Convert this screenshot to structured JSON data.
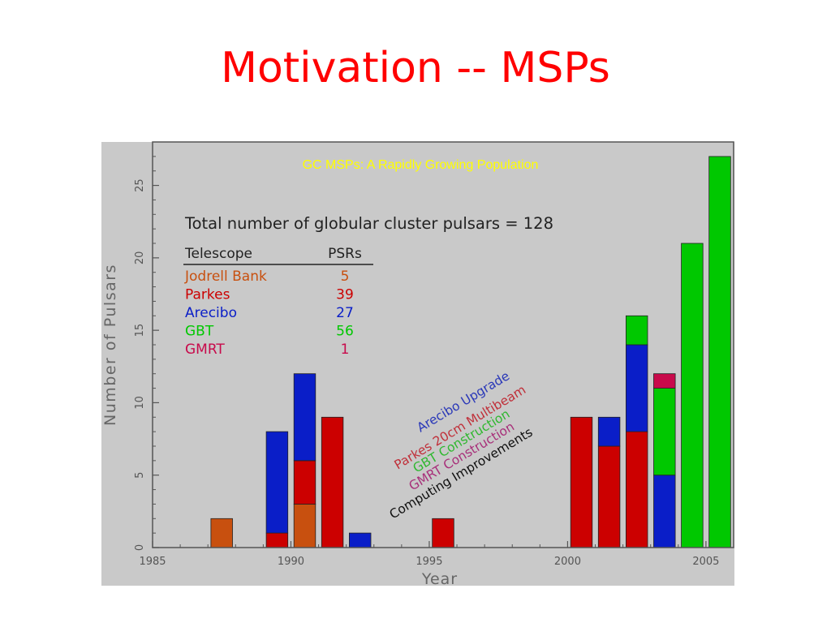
{
  "slide": {
    "title": "Motivation -- MSPs"
  },
  "chart_data": {
    "type": "bar",
    "stacked": true,
    "title": "GC MSPs: A Rapidly Growing Population",
    "xlabel": "Year",
    "ylabel": "Number of Pulsars",
    "xlim": [
      1985,
      2006
    ],
    "ylim": [
      0,
      28
    ],
    "xticks": [
      "1985",
      "1990",
      "1995",
      "2000",
      "2005"
    ],
    "yticks": [
      "0",
      "5",
      "10",
      "15",
      "20",
      "25"
    ],
    "grid": false,
    "colors": {
      "Jodrell Bank": "#c8500f",
      "Parkes": "#cc0000",
      "Arecibo": "#0a1ec8",
      "GBT": "#00c800",
      "GMRT": "#c80a4b"
    },
    "bars": [
      {
        "year": 1987.5,
        "segments": [
          {
            "series": "Jodrell Bank",
            "value": 2
          }
        ]
      },
      {
        "year": 1989.5,
        "segments": [
          {
            "series": "Parkes",
            "value": 1
          },
          {
            "series": "Arecibo",
            "value": 7
          }
        ]
      },
      {
        "year": 1990.5,
        "segments": [
          {
            "series": "Jodrell Bank",
            "value": 3
          },
          {
            "series": "Parkes",
            "value": 3
          },
          {
            "series": "Arecibo",
            "value": 6
          }
        ]
      },
      {
        "year": 1991.5,
        "segments": [
          {
            "series": "Parkes",
            "value": 9
          }
        ]
      },
      {
        "year": 1992.5,
        "segments": [
          {
            "series": "Arecibo",
            "value": 1
          }
        ]
      },
      {
        "year": 1995.5,
        "segments": [
          {
            "series": "Parkes",
            "value": 2
          }
        ]
      },
      {
        "year": 2000.5,
        "segments": [
          {
            "series": "Parkes",
            "value": 9
          }
        ]
      },
      {
        "year": 2001.5,
        "segments": [
          {
            "series": "Parkes",
            "value": 7
          },
          {
            "series": "Arecibo",
            "value": 2
          }
        ]
      },
      {
        "year": 2002.5,
        "segments": [
          {
            "series": "Parkes",
            "value": 8
          },
          {
            "series": "Arecibo",
            "value": 6
          },
          {
            "series": "GBT",
            "value": 2
          }
        ]
      },
      {
        "year": 2003.5,
        "segments": [
          {
            "series": "Arecibo",
            "value": 5
          },
          {
            "series": "GBT",
            "value": 6
          },
          {
            "series": "GMRT",
            "value": 1
          }
        ]
      },
      {
        "year": 2004.5,
        "segments": [
          {
            "series": "GBT",
            "value": 21
          }
        ]
      },
      {
        "year": 2005.5,
        "segments": [
          {
            "series": "GBT",
            "value": 27
          }
        ]
      }
    ],
    "annotation": {
      "total_text": "Total number of globular cluster pulsars = 128",
      "table_header": {
        "telescope": "Telescope",
        "psrs": "PSRs"
      },
      "table_rows": [
        {
          "telescope": "Jodrell Bank",
          "psrs": "5"
        },
        {
          "telescope": "Parkes",
          "psrs": "39"
        },
        {
          "telescope": "Arecibo",
          "psrs": "27"
        },
        {
          "telescope": "GBT",
          "psrs": "56"
        },
        {
          "telescope": "GMRT",
          "psrs": "1"
        }
      ]
    },
    "events": [
      {
        "text": "Arecibo Upgrade",
        "color": "#2a38b8"
      },
      {
        "text": "Parkes 20cm Multibeam",
        "color": "#c0303a"
      },
      {
        "text": "GBT Construction",
        "color": "#30b830"
      },
      {
        "text": "GMRT Construction",
        "color": "#a8307a"
      },
      {
        "text": "Computing Improvements",
        "color": "#111111"
      }
    ]
  }
}
